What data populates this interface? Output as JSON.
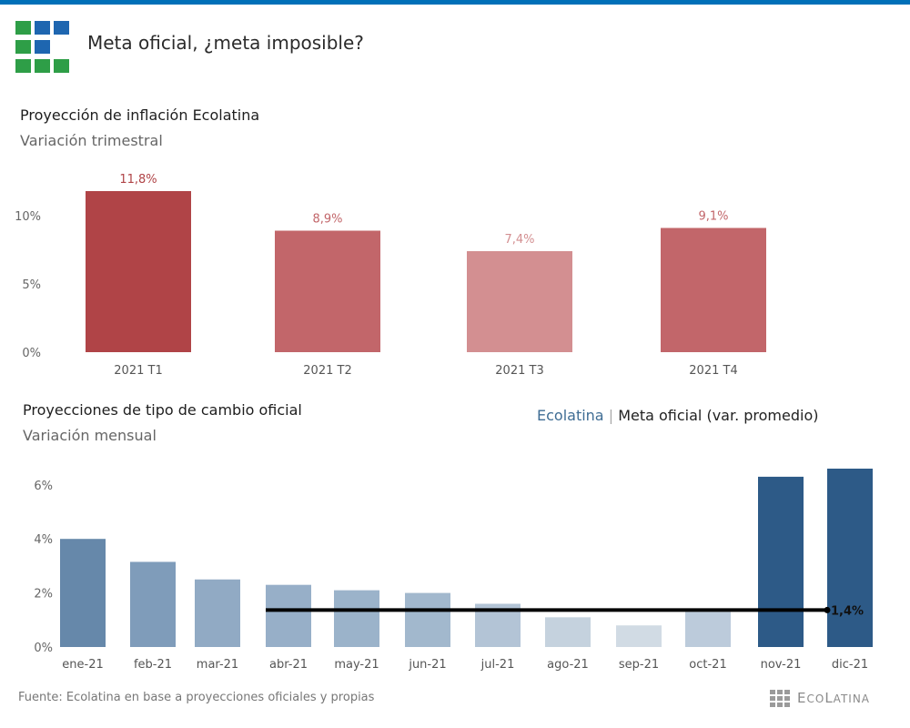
{
  "header": {
    "title": "Meta oficial, ¿meta imposible?",
    "logo_icon": "ecolatina-grid-logo-icon",
    "accent_color": "#0070b8",
    "logo_colors": [
      "#2e9e47",
      "#1e66b0",
      "#1e66b0",
      "#2e9e47",
      "#1e66b0",
      "#ffffff",
      "#2e9e47",
      "#2e9e47",
      "#2e9e47"
    ]
  },
  "quarterly": {
    "title": "Proyección de inflación Ecolatina",
    "subtitle": "Variación trimestral"
  },
  "monthly": {
    "title": "Proyecciones de tipo de cambio oficial",
    "subtitle": "Variación mensual",
    "legend": {
      "ecolatina": "Ecolatina",
      "separator": "|",
      "meta": "Meta oficial (var. promedio)"
    }
  },
  "footer": {
    "source": "Fuente: Ecolatina en base a proyecciones oficiales y propias",
    "brand_big_e": "E",
    "brand_co": "CO",
    "brand_big_l": "L",
    "brand_atina": "ATINA"
  },
  "chart_data": [
    {
      "type": "bar",
      "title": "Proyección de inflación Ecolatina",
      "subtitle": "Variación trimestral",
      "categories": [
        "2021 T1",
        "2021 T2",
        "2021 T3",
        "2021 T4"
      ],
      "values": [
        11.8,
        8.9,
        7.4,
        9.1
      ],
      "data_labels": [
        "11,8%",
        "8,9%",
        "7,4%",
        "9,1%"
      ],
      "colors": [
        "#b04447",
        "#c2666a",
        "#d38f91",
        "#c2666a"
      ],
      "label_colors": [
        "#b04447",
        "#c2666a",
        "#d38f91",
        "#c2666a"
      ],
      "yticks": [
        0,
        5,
        10
      ],
      "ytick_labels": [
        "0%",
        "5%",
        "10%"
      ],
      "ylim": [
        0,
        12.5
      ],
      "grid": false
    },
    {
      "type": "bar",
      "title": "Proyecciones de tipo de cambio oficial",
      "subtitle": "Variación mensual",
      "categories": [
        "ene-21",
        "feb-21",
        "mar-21",
        "abr-21",
        "may-21",
        "jun-21",
        "jul-21",
        "ago-21",
        "sep-21",
        "oct-21",
        "nov-21",
        "dic-21"
      ],
      "series": [
        {
          "name": "Ecolatina",
          "values": [
            4.0,
            3.15,
            2.5,
            2.3,
            2.1,
            2.0,
            1.6,
            1.1,
            0.8,
            1.3,
            6.3,
            6.6
          ],
          "colors": [
            "#6688aa",
            "#7f9cba",
            "#91aac4",
            "#97afc8",
            "#9bb3ca",
            "#a2b8cd",
            "#b3c4d6",
            "#c5d2de",
            "#d1dbe4",
            "#bccbdb",
            "#2d5a87",
            "#2d5a87"
          ]
        },
        {
          "name": "Meta oficial (var. promedio)",
          "type": "line",
          "start_category": "abr-21",
          "end_category": "dic-21",
          "value": 1.4,
          "end_label": "1,4%",
          "color": "#000000"
        }
      ],
      "yticks": [
        0,
        2,
        4,
        6
      ],
      "ytick_labels": [
        "0%",
        "2%",
        "4%",
        "6%"
      ],
      "ylim": [
        0,
        6.8
      ],
      "legend_position": "top-right",
      "grid": false
    }
  ]
}
